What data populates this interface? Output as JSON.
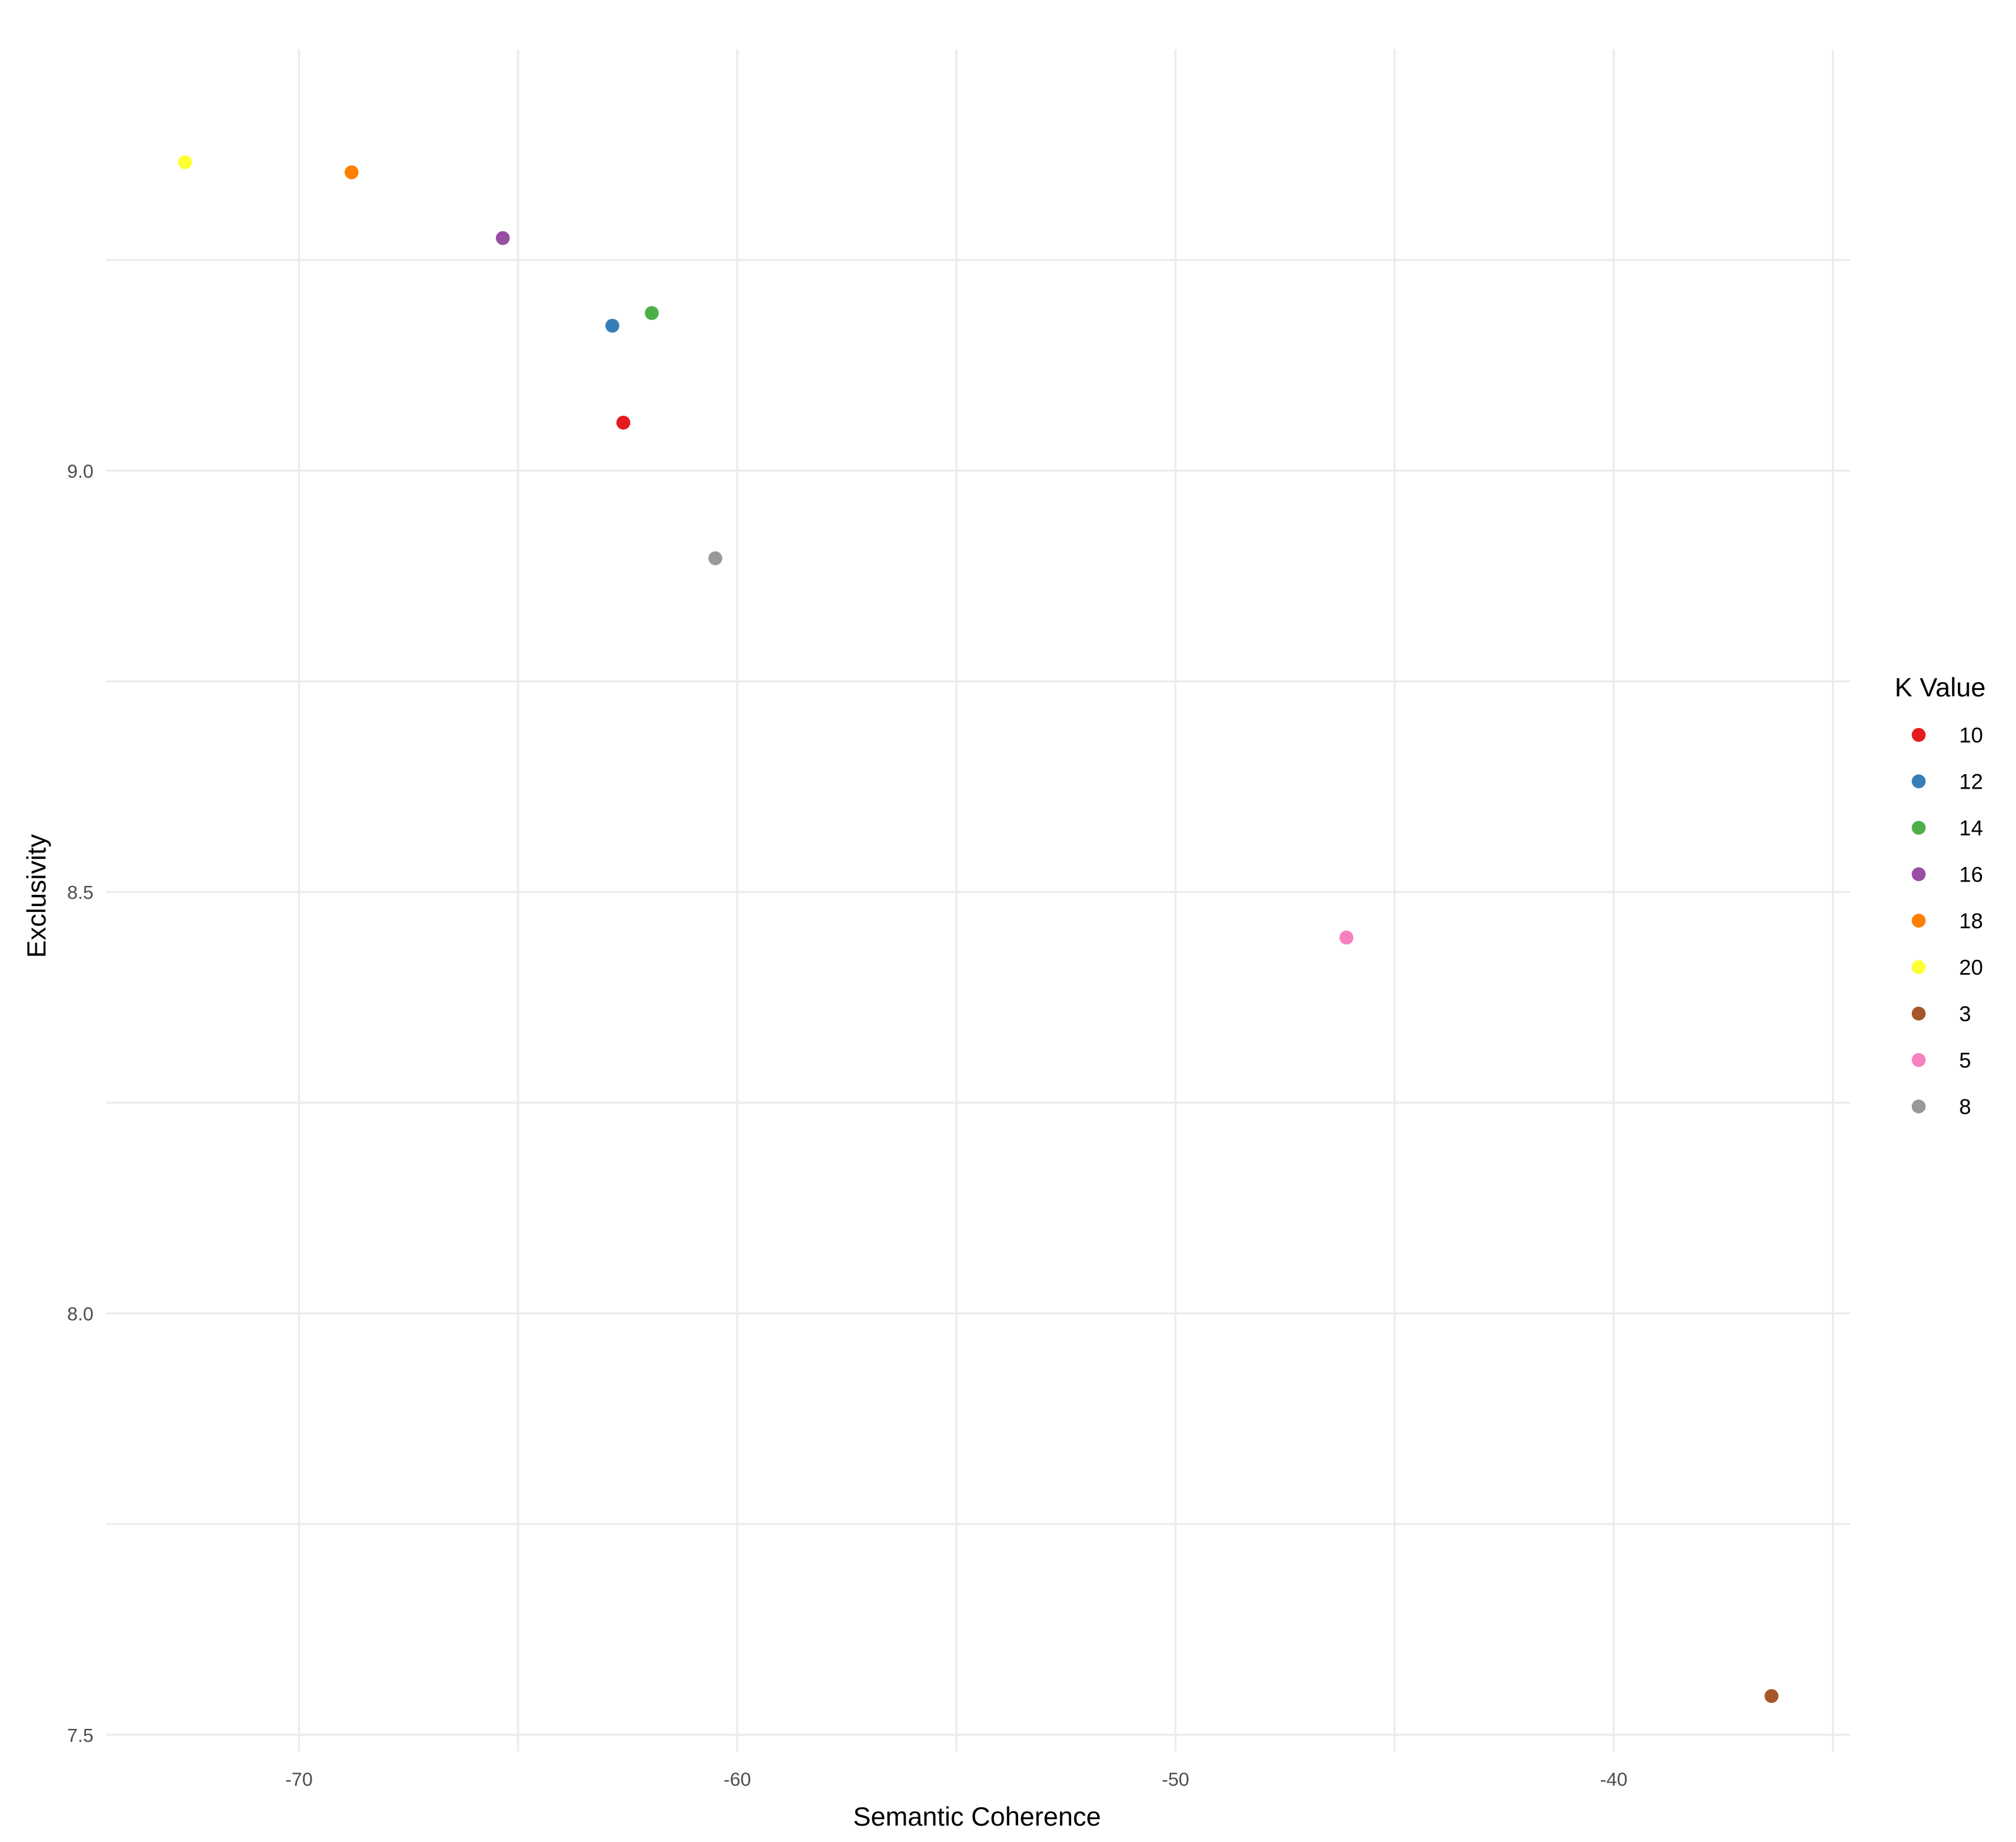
{
  "chart_data": {
    "type": "scatter",
    "title": "",
    "xlabel": "Semantic Coherence",
    "ylabel": "Exclusivity",
    "xlim": [
      -74.4,
      -34.6
    ],
    "ylim": [
      7.48,
      9.5
    ],
    "x_major_ticks": [
      -70,
      -60,
      -50,
      -40
    ],
    "x_minor_ticks": [
      -65,
      -55,
      -45,
      -35
    ],
    "y_major_ticks": [
      7.5,
      8.0,
      8.5,
      9.0
    ],
    "y_minor_ticks": [
      7.75,
      8.25,
      8.75,
      9.25
    ],
    "x_tick_labels": [
      "-70",
      "-60",
      "-50",
      "-40"
    ],
    "y_tick_labels": [
      "7.5",
      "8.0",
      "8.5",
      "9.0"
    ],
    "grid": true,
    "legend": {
      "title": "K Value",
      "position": "right"
    },
    "series": [
      {
        "name": "10",
        "color": "#e41a1c",
        "x": -62.6,
        "y": 9.057
      },
      {
        "name": "12",
        "color": "#377eb8",
        "x": -62.85,
        "y": 9.172
      },
      {
        "name": "14",
        "color": "#4daf4a",
        "x": -61.95,
        "y": 9.187
      },
      {
        "name": "16",
        "color": "#984ea3",
        "x": -65.35,
        "y": 9.276
      },
      {
        "name": "18",
        "color": "#ff7f00",
        "x": -68.8,
        "y": 9.354
      },
      {
        "name": "20",
        "color": "#ffff33",
        "x": -72.6,
        "y": 9.366
      },
      {
        "name": "3",
        "color": "#a65628",
        "x": -36.4,
        "y": 7.546
      },
      {
        "name": "5",
        "color": "#f781bf",
        "x": -46.1,
        "y": 8.446
      },
      {
        "name": "8",
        "color": "#999999",
        "x": -60.5,
        "y": 8.896
      }
    ]
  }
}
